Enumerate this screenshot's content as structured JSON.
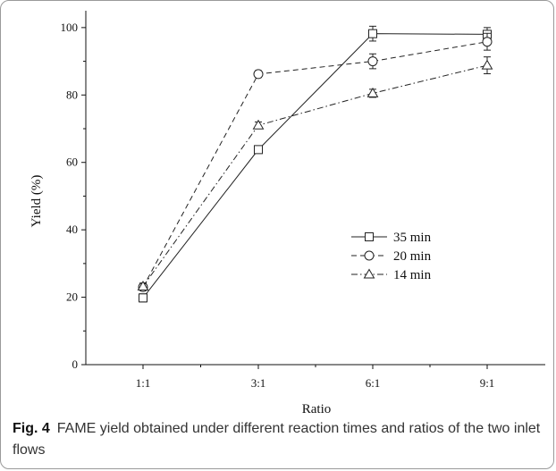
{
  "caption": {
    "label": "Fig. 4",
    "text": "FAME yield obtained under different reaction times and ratios of the two inlet flows"
  },
  "chart_data": {
    "type": "line",
    "title": "",
    "xlabel": "Ratio",
    "ylabel": "Yield (%)",
    "categories": [
      "1:1",
      "3:1",
      "6:1",
      "9:1"
    ],
    "ylim": [
      0,
      105
    ],
    "yticks": [
      0,
      20,
      40,
      60,
      80,
      100
    ],
    "grid": false,
    "legend_position": "center-right",
    "series": [
      {
        "name": "35 min",
        "values": [
          19.8,
          63.8,
          98.2,
          98.0
        ],
        "errors": [
          1.2,
          1.0,
          2.2,
          2.0
        ],
        "marker": "square",
        "dash": "solid"
      },
      {
        "name": "20 min",
        "values": [
          23.0,
          86.2,
          90.0,
          95.8
        ],
        "errors": [
          1.0,
          1.0,
          2.2,
          2.5
        ],
        "marker": "circle",
        "dash": "dashed"
      },
      {
        "name": "14 min",
        "values": [
          23.2,
          71.0,
          80.5,
          88.8
        ],
        "errors": [
          1.0,
          1.0,
          1.2,
          2.5
        ],
        "marker": "triangle",
        "dash": "dashdot"
      }
    ]
  }
}
